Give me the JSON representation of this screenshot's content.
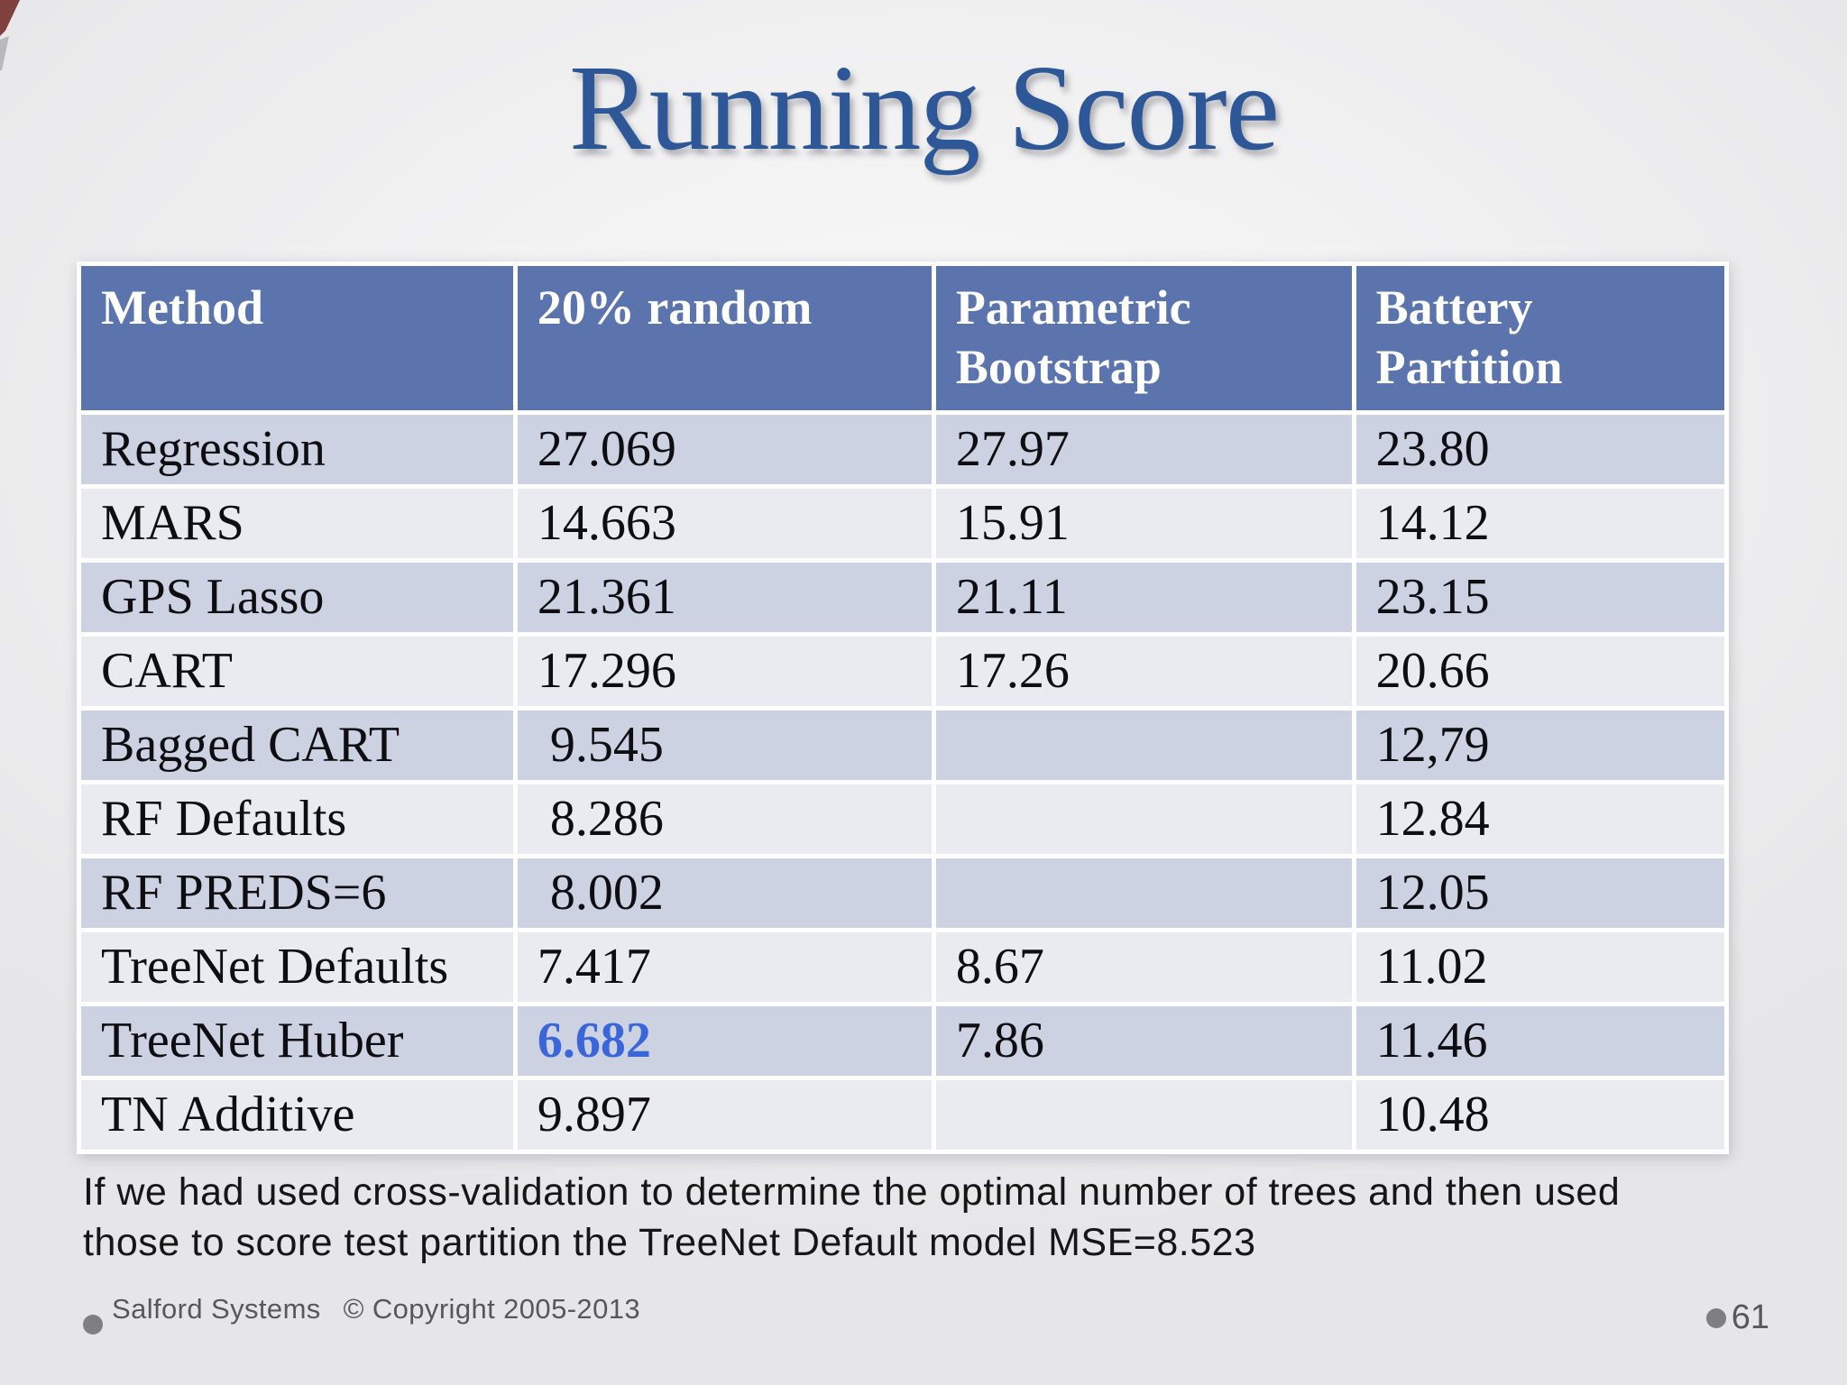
{
  "colors": {
    "title_blue": "#2d5797",
    "header_blue": "#5b74ae",
    "row_dark": "#ccd2e1",
    "row_light": "#e9ebf1",
    "highlight_blue": "#3b66d9",
    "footer_gray": "#58585a"
  },
  "slide": {
    "title": "Running Score",
    "note": "If we had used cross-validation to determine the optimal number of trees and then used those to score test partition the TreeNet Default model MSE=8.523",
    "footer_copyright": "Salford Systems  © Copyright 2005-2013",
    "page_number": "61"
  },
  "chart_data": {
    "type": "table",
    "title": "Running Score",
    "columns": [
      "Method",
      "20% random",
      "Parametric Bootstrap",
      "Battery Partition"
    ],
    "rows": [
      [
        "Regression",
        "27.069",
        "27.97",
        "23.80"
      ],
      [
        "MARS",
        "14.663",
        "15.91",
        "14.12"
      ],
      [
        "GPS Lasso",
        "21.361",
        "21.11",
        "23.15"
      ],
      [
        "CART",
        "17.296",
        "17.26",
        "20.66"
      ],
      [
        "Bagged CART",
        " 9.545",
        "",
        "12,79"
      ],
      [
        "RF Defaults",
        " 8.286",
        "",
        "12.84"
      ],
      [
        "RF PREDS=6",
        " 8.002",
        "",
        "12.05"
      ],
      [
        "TreeNet Defaults",
        "7.417",
        "8.67",
        "11.02"
      ],
      [
        "TreeNet Huber",
        "6.682",
        "7.86",
        "11.46"
      ],
      [
        "TN Additive",
        "9.897",
        "",
        "10.48"
      ]
    ],
    "highlight": {
      "row_index": 8,
      "col_index": 1,
      "color": "#3b66d9"
    }
  }
}
